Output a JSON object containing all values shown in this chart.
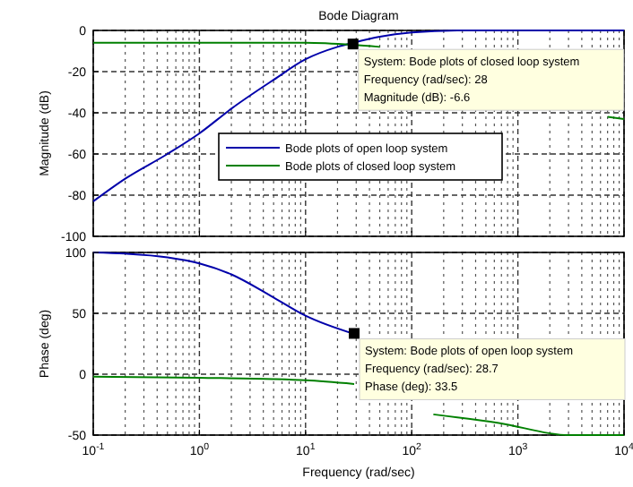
{
  "chart_data": [
    {
      "type": "line",
      "title": "Bode Diagram",
      "ylabel": "Magnitude (dB)",
      "log": "x",
      "grid": true,
      "legend": "center",
      "tick_labels": "y",
      "xlim": [
        0.1,
        10000
      ],
      "xticks": [
        {
          "value": 0.1,
          "label": null
        },
        {
          "value": 1,
          "label": null
        },
        {
          "value": 10,
          "label": null
        },
        {
          "value": 100,
          "label": null
        },
        {
          "value": 1000,
          "label": null
        },
        {
          "value": 10000,
          "label": null
        }
      ],
      "ylim": [
        -100,
        0
      ],
      "yticks": [
        -100,
        -80,
        -60,
        -40,
        -20,
        0
      ],
      "series": [
        {
          "name": "Bode plots of open loop system",
          "color": "#0000aa",
          "x": [
            0.1,
            0.2,
            0.5,
            1,
            2,
            5,
            10,
            20,
            28,
            50,
            100,
            300,
            1000,
            10000
          ],
          "values": [
            -83,
            -72,
            -60,
            -50,
            -38,
            -24,
            -14,
            -8,
            -6,
            -3,
            -1,
            0,
            0,
            0
          ]
        },
        {
          "name": "Bode plots of closed loop system",
          "color": "#008000",
          "x": [
            0.1,
            1,
            10,
            28,
            50,
            100,
            300,
            1000,
            3000,
            7000,
            10000
          ],
          "values": [
            -6,
            -6,
            -6,
            -7,
            -8,
            null,
            null,
            null,
            null,
            -42,
            -43
          ]
        }
      ],
      "annotations": [
        {
          "text": "System: Bode plots of closed loop system\nFrequency (rad/sec): 28\nMagnitude (dB): -6.6",
          "x": 28,
          "y": -6.6
        }
      ]
    },
    {
      "type": "line",
      "ylabel": "Phase (deg)",
      "xlabel": "Frequency (rad/sec)",
      "log": "x",
      "grid": true,
      "xlim": [
        0.1,
        10000
      ],
      "xticks": [
        {
          "value": 0.1,
          "label": "10$^{-1}$"
        },
        {
          "value": 1,
          "label": "10$^{0}$"
        },
        {
          "value": 10,
          "label": "10$^{1}$"
        },
        {
          "value": 100,
          "label": "10$^{2}$"
        },
        {
          "value": 1000,
          "label": "10$^{3}$"
        },
        {
          "value": 10000,
          "label": "10$^{4}$"
        }
      ],
      "ylim": [
        -50,
        100
      ],
      "yticks": [
        -50,
        0,
        50,
        100
      ],
      "series": [
        {
          "color": "#0000aa",
          "x": [
            0.1,
            0.2,
            0.5,
            1,
            2,
            5,
            10,
            28.7
          ],
          "values": [
            100,
            99,
            96,
            91,
            82,
            63,
            48,
            33
          ]
        },
        {
          "color": "#008000",
          "x": [
            0.1,
            1,
            5,
            10,
            28.7,
            100,
            160,
            660,
            3000,
            10000
          ],
          "values": [
            -2,
            -3,
            -4,
            -5,
            -8,
            null,
            -33,
            -40,
            -50,
            -50
          ]
        }
      ],
      "annotations": [
        {
          "text": "System: Bode plots of open loop system\nFrequency (rad/sec): 28.7\nPhase (deg): 33.5",
          "x": 28.7,
          "y": 33.5
        }
      ]
    }
  ]
}
